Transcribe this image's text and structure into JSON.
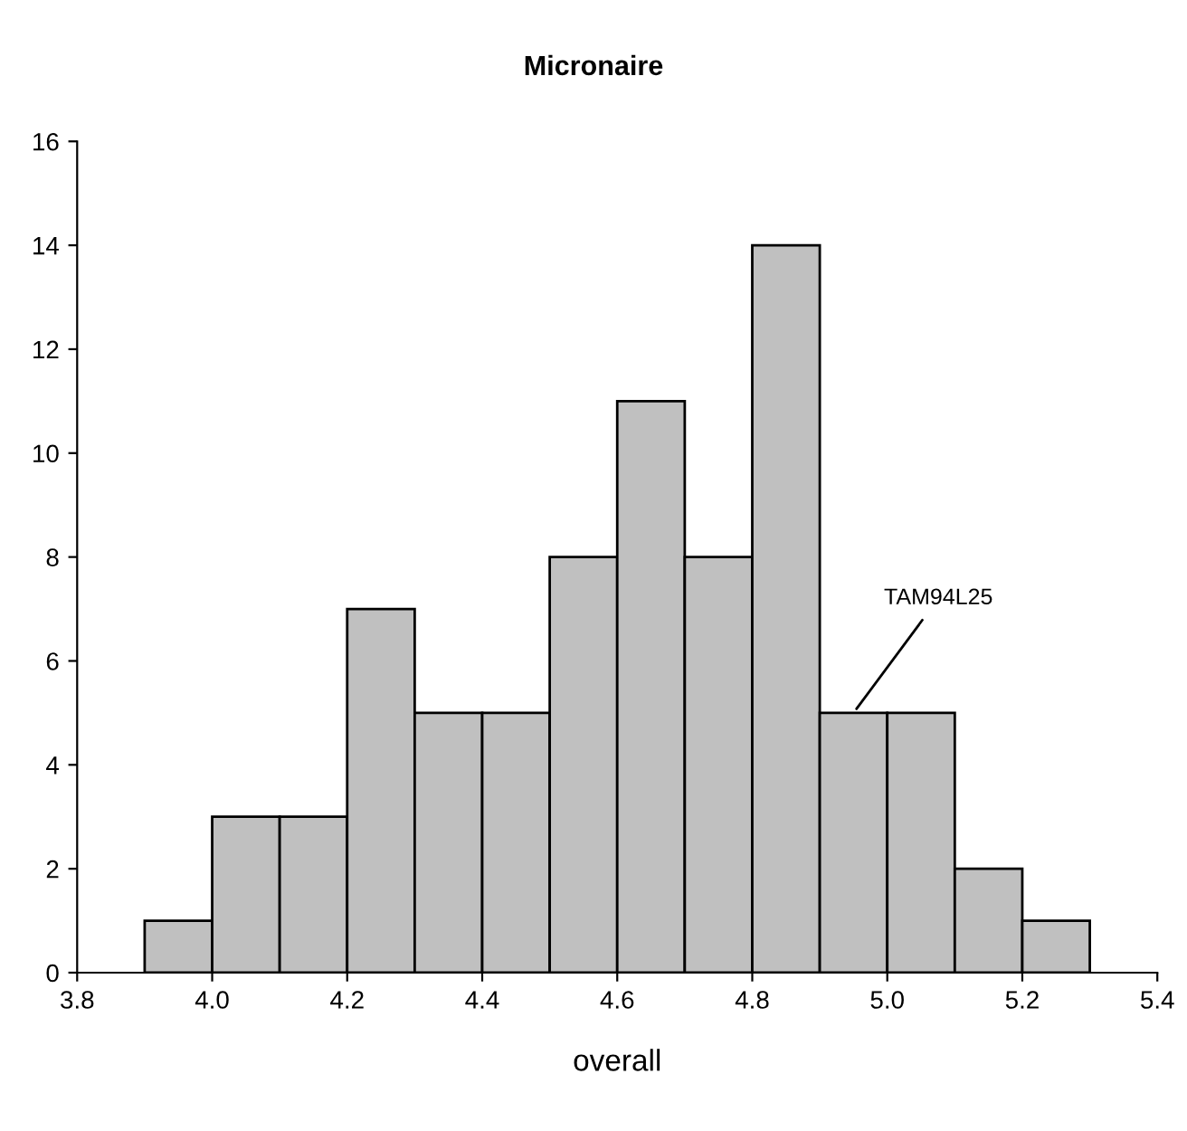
{
  "chart_data": {
    "type": "histogram",
    "title": "Micronaire",
    "xlabel": "overall",
    "bins": [
      3.9,
      4.0,
      4.1,
      4.2,
      4.3,
      4.4,
      4.5,
      4.6,
      4.7,
      4.8,
      4.9,
      5.0,
      5.1,
      5.2,
      5.3
    ],
    "values": [
      1,
      3,
      3,
      7,
      5,
      5,
      8,
      11,
      8,
      14,
      5,
      5,
      2,
      1
    ],
    "color": "#c0c0c0",
    "xlim": [
      3.8,
      5.4
    ],
    "xticks": [
      3.8,
      {
        "value": 4.0,
        "label": "4.0"
      },
      4.2,
      4.4,
      4.6,
      4.8,
      {
        "value": 5.0,
        "label": "5.0"
      },
      5.2,
      5.4
    ],
    "ylim": [
      0,
      16
    ],
    "yticks": [
      0,
      2,
      4,
      6,
      8,
      10,
      12,
      14,
      16
    ],
    "grid": false,
    "annotations": [
      {
        "text": "TAM94L25",
        "x": 4.95,
        "y": 5
      }
    ]
  }
}
